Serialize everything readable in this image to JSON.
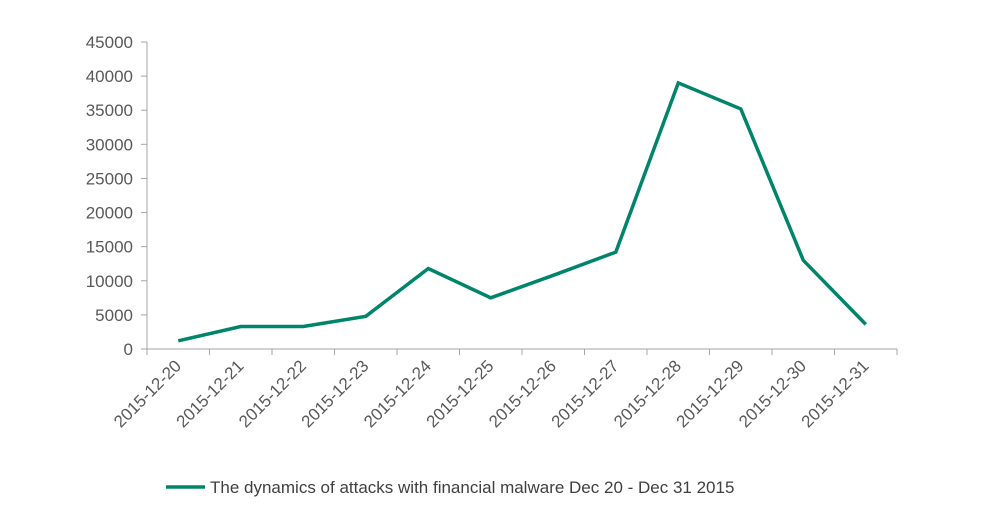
{
  "chart_data": {
    "type": "line",
    "title": "",
    "xlabel": "",
    "ylabel": "",
    "categories": [
      "2015-12-20",
      "2015-12-21",
      "2015-12-22",
      "2015-12-23",
      "2015-12-24",
      "2015-12-25",
      "2015-12-26",
      "2015-12-27",
      "2015-12-28",
      "2015-12-29",
      "2015-12-30",
      "2015-12-31"
    ],
    "series": [
      {
        "name": "The dynamics of attacks with financial malware Dec 20 - Dec 31 2015",
        "values": [
          1200,
          3300,
          3300,
          4800,
          11800,
          7500,
          10800,
          14200,
          39000,
          35200,
          13000,
          3600
        ],
        "color": "#00846a"
      }
    ],
    "ylim": [
      0,
      45000
    ],
    "yticks": [
      "0",
      "5000",
      "10000",
      "15000",
      "20000",
      "25000",
      "30000",
      "35000",
      "40000",
      "45000"
    ],
    "grid": false,
    "legend_position": "bottom"
  }
}
